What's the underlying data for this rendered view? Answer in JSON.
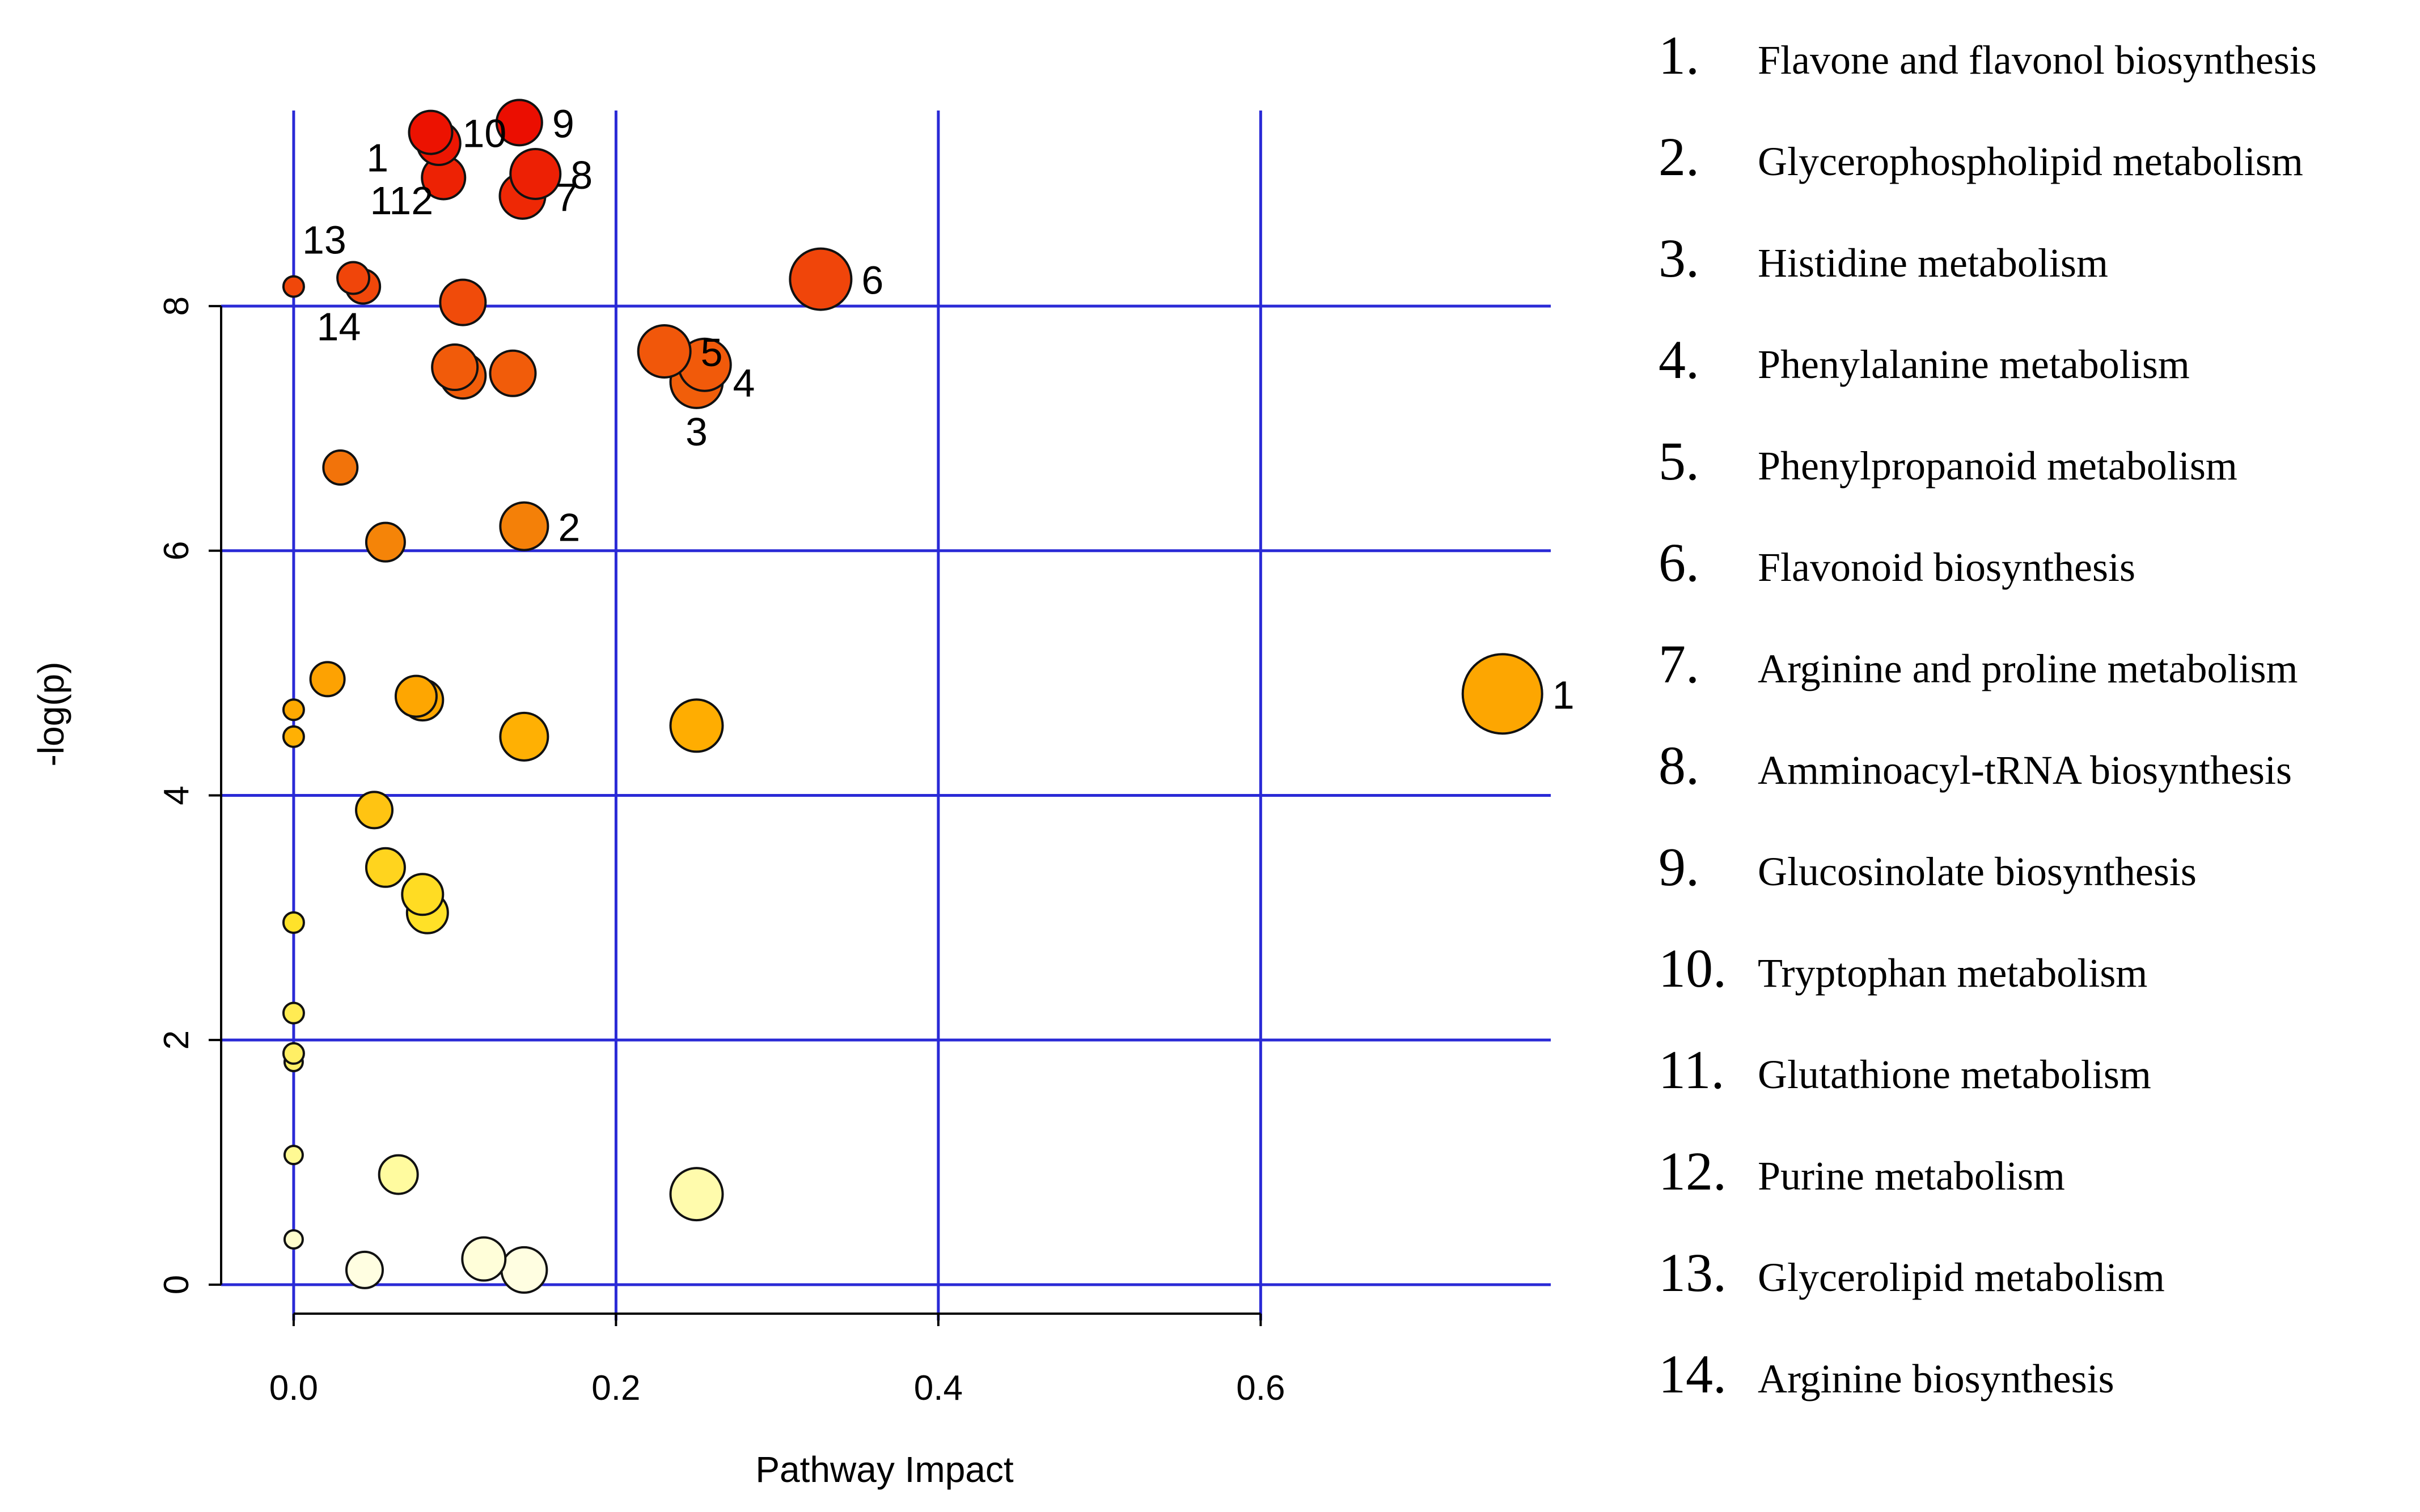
{
  "chart_data": {
    "type": "scatter",
    "xlabel": "Pathway Impact",
    "ylabel": "-log(p)",
    "xlim": [
      -0.045,
      0.78
    ],
    "ylim": [
      -0.2,
      9.9
    ],
    "x_ticks": [
      0.0,
      0.2,
      0.4,
      0.6
    ],
    "x_tick_labels": [
      "0.0",
      "0.2",
      "0.4",
      "0.6"
    ],
    "y_ticks": [
      0,
      2,
      4,
      6,
      8
    ],
    "y_tick_labels": [
      "0",
      "2",
      "4",
      "6",
      "8"
    ],
    "grid": true,
    "grid_color": "#2a2ad6",
    "points": [
      {
        "x": 0.14,
        "y": 9.5,
        "size": 1.0,
        "label": "9"
      },
      {
        "x": 0.085,
        "y": 9.42,
        "size": 0.95,
        "label": "10"
      },
      {
        "x": 0.09,
        "y": 9.33,
        "size": 0.95,
        "label": ""
      },
      {
        "x": 0.15,
        "y": 9.08,
        "size": 1.1,
        "label": "8"
      },
      {
        "x": 0.093,
        "y": 9.05,
        "size": 0.95,
        "label": ""
      },
      {
        "x": 0.142,
        "y": 8.9,
        "size": 1.0,
        "label": "7"
      },
      {
        "x": 0.327,
        "y": 8.22,
        "size": 1.35,
        "label": "6"
      },
      {
        "x": 0.037,
        "y": 8.23,
        "size": 0.7,
        "label": ""
      },
      {
        "x": 0.043,
        "y": 8.16,
        "size": 0.75,
        "label": ""
      },
      {
        "x": 0.0,
        "y": 8.16,
        "size": 0.45,
        "label": ""
      },
      {
        "x": 0.105,
        "y": 8.03,
        "size": 1.0,
        "label": ""
      },
      {
        "x": 0.23,
        "y": 7.63,
        "size": 1.15,
        "label": "5"
      },
      {
        "x": 0.255,
        "y": 7.52,
        "size": 1.15,
        "label": ""
      },
      {
        "x": 0.1,
        "y": 7.5,
        "size": 1.0,
        "label": ""
      },
      {
        "x": 0.136,
        "y": 7.45,
        "size": 1.0,
        "label": ""
      },
      {
        "x": 0.105,
        "y": 7.43,
        "size": 1.0,
        "label": ""
      },
      {
        "x": 0.25,
        "y": 7.38,
        "size": 1.15,
        "label": "4"
      },
      {
        "x": 0.029,
        "y": 6.68,
        "size": 0.75,
        "label": ""
      },
      {
        "x": 0.143,
        "y": 6.2,
        "size": 1.05,
        "label": "2"
      },
      {
        "x": 0.057,
        "y": 6.07,
        "size": 0.85,
        "label": ""
      },
      {
        "x": 0.021,
        "y": 4.95,
        "size": 0.75,
        "label": ""
      },
      {
        "x": 0.076,
        "y": 4.81,
        "size": 0.9,
        "label": ""
      },
      {
        "x": 0.08,
        "y": 4.78,
        "size": 0.9,
        "label": ""
      },
      {
        "x": 0.75,
        "y": 4.83,
        "size": 1.75,
        "label": "1"
      },
      {
        "x": 0.0,
        "y": 4.7,
        "size": 0.45,
        "label": ""
      },
      {
        "x": 0.143,
        "y": 4.48,
        "size": 1.05,
        "label": ""
      },
      {
        "x": 0.25,
        "y": 4.57,
        "size": 1.15,
        "label": ""
      },
      {
        "x": 0.0,
        "y": 4.48,
        "size": 0.45,
        "label": ""
      },
      {
        "x": 0.05,
        "y": 3.88,
        "size": 0.8,
        "label": ""
      },
      {
        "x": 0.057,
        "y": 3.41,
        "size": 0.85,
        "label": ""
      },
      {
        "x": 0.08,
        "y": 3.19,
        "size": 0.9,
        "label": ""
      },
      {
        "x": 0.083,
        "y": 3.04,
        "size": 0.9,
        "label": ""
      },
      {
        "x": 0.0,
        "y": 2.96,
        "size": 0.45,
        "label": ""
      },
      {
        "x": 0.0,
        "y": 2.22,
        "size": 0.45,
        "label": ""
      },
      {
        "x": 0.0,
        "y": 1.89,
        "size": 0.45,
        "label": ""
      },
      {
        "x": 0.0,
        "y": 1.82,
        "size": 0.4,
        "label": ""
      },
      {
        "x": 0.0,
        "y": 1.06,
        "size": 0.4,
        "label": ""
      },
      {
        "x": 0.065,
        "y": 0.9,
        "size": 0.85,
        "label": ""
      },
      {
        "x": 0.25,
        "y": 0.74,
        "size": 1.15,
        "label": ""
      },
      {
        "x": 0.0,
        "y": 0.37,
        "size": 0.4,
        "label": ""
      },
      {
        "x": 0.118,
        "y": 0.21,
        "size": 0.95,
        "label": ""
      },
      {
        "x": 0.143,
        "y": 0.12,
        "size": 1.0,
        "label": ""
      },
      {
        "x": 0.044,
        "y": 0.12,
        "size": 0.8,
        "label": ""
      }
    ],
    "free_labels": [
      {
        "text": "1",
        "x": 0.052,
        "y": 9.1
      },
      {
        "text": "112",
        "x": 0.067,
        "y": 8.75
      },
      {
        "text": "13",
        "x": 0.019,
        "y": 8.43
      },
      {
        "text": "14",
        "x": 0.028,
        "y": 7.72
      },
      {
        "text": "3",
        "x": 0.25,
        "y": 6.86
      }
    ],
    "legend": [
      {
        "num": "1.",
        "name": "Flavone and flavonol biosynthesis"
      },
      {
        "num": "2.",
        "name": "Glycerophospholipid metabolism"
      },
      {
        "num": "3.",
        "name": "Histidine metabolism"
      },
      {
        "num": "4.",
        "name": "Phenylalanine metabolism"
      },
      {
        "num": "5.",
        "name": "Phenylpropanoid metabolism"
      },
      {
        "num": "6.",
        "name": "Flavonoid biosynthesis"
      },
      {
        "num": "7.",
        "name": "Arginine and proline metabolism"
      },
      {
        "num": "8.",
        "name": "Amminoacyl-tRNA biosynthesis"
      },
      {
        "num": "9.",
        "name": "Glucosinolate biosynthesis"
      },
      {
        "num": "10.",
        "name": "Tryptophan metabolism"
      },
      {
        "num": "11.",
        "name": "Glutathione metabolism"
      },
      {
        "num": "12.",
        "name": "Purine metabolism"
      },
      {
        "num": "13.",
        "name": "Glycerolipid metabolism"
      },
      {
        "num": "14.",
        "name": "Arginine biosynthesis"
      }
    ]
  }
}
